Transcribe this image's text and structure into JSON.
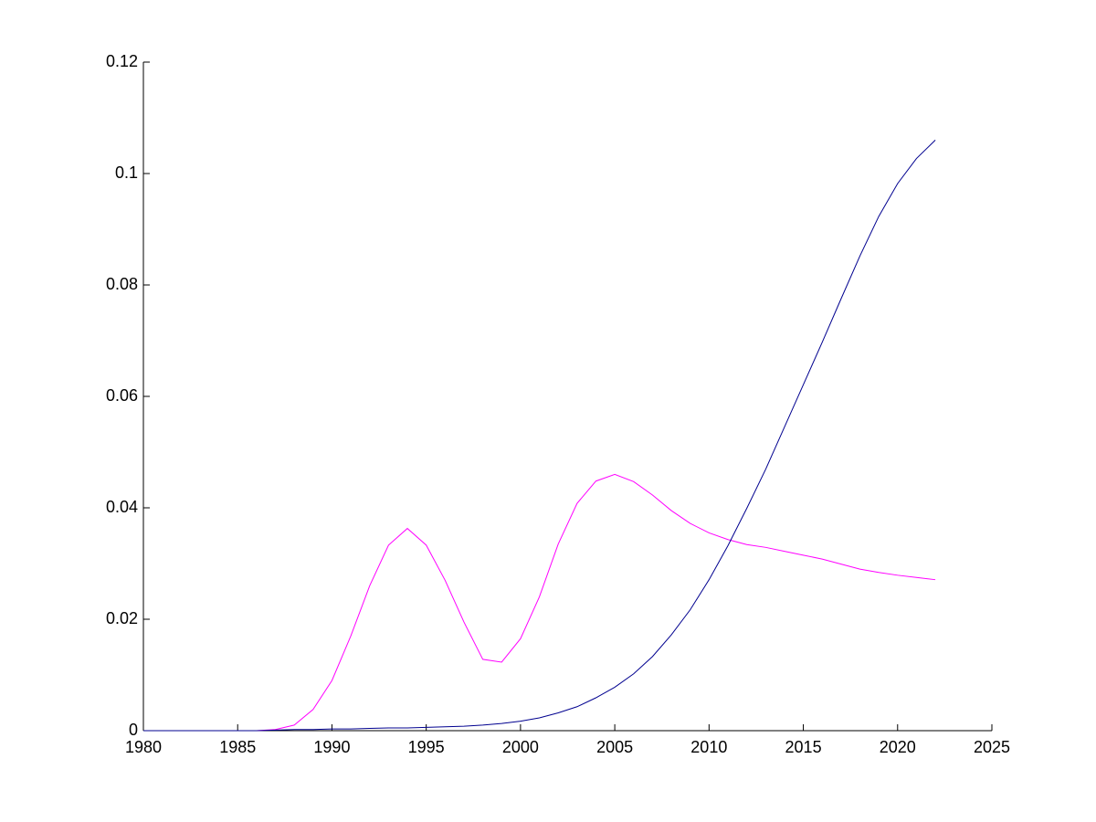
{
  "chart_data": {
    "type": "line",
    "x": [
      1980,
      1981,
      1982,
      1983,
      1984,
      1985,
      1986,
      1987,
      1988,
      1989,
      1990,
      1991,
      1992,
      1993,
      1994,
      1995,
      1996,
      1997,
      1998,
      1999,
      2000,
      2001,
      2002,
      2003,
      2004,
      2005,
      2006,
      2007,
      2008,
      2009,
      2010,
      2011,
      2012,
      2013,
      2014,
      2015,
      2016,
      2017,
      2018,
      2019,
      2020,
      2021,
      2022
    ],
    "series": [
      {
        "color": "#ff00ff",
        "values": [
          0,
          0,
          0,
          0,
          0,
          0,
          0,
          0.0002,
          0.001,
          0.0038,
          0.009,
          0.017,
          0.026,
          0.0333,
          0.0363,
          0.0333,
          0.027,
          0.0195,
          0.0128,
          0.0123,
          0.0165,
          0.024,
          0.0335,
          0.0408,
          0.0448,
          0.046,
          0.0447,
          0.0423,
          0.0395,
          0.0372,
          0.0355,
          0.0343,
          0.0334,
          0.0329,
          0.0322,
          0.0315,
          0.0308,
          0.0299,
          0.029,
          0.0284,
          0.0279,
          0.0275,
          0.0271
        ]
      },
      {
        "color": "#00008f",
        "values": [
          0,
          0,
          0,
          0,
          0,
          0,
          0,
          0.0001,
          0.0002,
          0.0002,
          0.0003,
          0.0003,
          0.0004,
          0.0005,
          0.0005,
          0.0006,
          0.0007,
          0.0008,
          0.001,
          0.0013,
          0.0017,
          0.0023,
          0.0032,
          0.0043,
          0.0059,
          0.0078,
          0.0102,
          0.0133,
          0.0172,
          0.0217,
          0.0271,
          0.0332,
          0.0399,
          0.0469,
          0.0545,
          0.0621,
          0.0697,
          0.0775,
          0.0852,
          0.0923,
          0.0982,
          0.1027,
          0.106
        ]
      }
    ],
    "xlim": [
      1980,
      2025
    ],
    "xticks": [
      1980,
      1985,
      1990,
      1995,
      2000,
      2005,
      2010,
      2015,
      2020,
      2025
    ],
    "ylim": [
      0,
      0.12
    ],
    "yticks": [
      0,
      0.02,
      0.04,
      0.06,
      0.08,
      0.1,
      0.12
    ]
  }
}
